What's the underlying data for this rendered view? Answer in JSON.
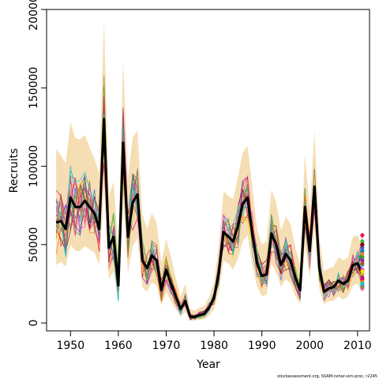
{
  "chart_data": {
    "type": "line",
    "xlabel": "Year",
    "ylabel": "Recruits",
    "xlim": [
      1945,
      2012.5
    ],
    "ylim": [
      -5000,
      200000
    ],
    "x_ticks": [
      1950,
      1960,
      1970,
      1980,
      1990,
      2000,
      2010
    ],
    "x_tick_labels": [
      "1950",
      "1960",
      "1970",
      "1980",
      "1990",
      "2000",
      "2010"
    ],
    "y_ticks": [
      0,
      50000,
      100000,
      150000,
      200000
    ],
    "y_tick_labels": [
      "0",
      "50000",
      "100000",
      "150000",
      "200000"
    ],
    "grid": false,
    "legend": "none",
    "credit": "stockassessment.org, SSAM-nsher-sim-proc, r2245",
    "x": [
      1947,
      1948,
      1949,
      1950,
      1951,
      1952,
      1953,
      1954,
      1955,
      1956,
      1957,
      1958,
      1959,
      1960,
      1961,
      1962,
      1963,
      1964,
      1965,
      1966,
      1967,
      1968,
      1969,
      1970,
      1971,
      1972,
      1973,
      1974,
      1975,
      1976,
      1977,
      1978,
      1979,
      1980,
      1981,
      1982,
      1983,
      1984,
      1985,
      1986,
      1987,
      1988,
      1989,
      1990,
      1991,
      1992,
      1993,
      1994,
      1995,
      1996,
      1997,
      1998,
      1999,
      2000,
      2001,
      2002,
      2003,
      2004,
      2005,
      2006,
      2007,
      2008,
      2009,
      2010,
      2011
    ],
    "series": [
      {
        "role": "estimate",
        "color": "#000000",
        "values": [
          64000,
          65000,
          60000,
          80000,
          74000,
          74000,
          78000,
          74000,
          70000,
          60000,
          130000,
          48000,
          55000,
          24000,
          115000,
          55000,
          77000,
          82000,
          40000,
          35000,
          43000,
          40000,
          21000,
          34000,
          25000,
          17000,
          9000,
          14000,
          4000,
          4000,
          5000,
          6000,
          10000,
          16000,
          32000,
          58000,
          55000,
          52000,
          62000,
          76000,
          80000,
          57000,
          38000,
          30000,
          31000,
          57000,
          50000,
          37000,
          44000,
          40000,
          29000,
          21000,
          74000,
          46000,
          87000,
          35000,
          20000,
          22000,
          23000,
          27000,
          25000,
          27000,
          37000,
          38000,
          31000
        ]
      },
      {
        "role": "confidence-band-upper",
        "color": "#f5deb3",
        "values": [
          111000,
          107000,
          102000,
          128000,
          118000,
          117000,
          120000,
          112000,
          105000,
          95000,
          193000,
          81000,
          90000,
          47000,
          168000,
          93000,
          118000,
          123000,
          70000,
          60000,
          70000,
          64000,
          38000,
          54000,
          42000,
          29000,
          17000,
          25000,
          9000,
          8000,
          10000,
          11000,
          17000,
          26000,
          50000,
          84000,
          81000,
          79000,
          93000,
          109000,
          113000,
          87000,
          60000,
          50000,
          52000,
          85000,
          77000,
          59000,
          68000,
          63000,
          48000,
          37000,
          108000,
          71000,
          123000,
          55000,
          33000,
          35000,
          36000,
          42000,
          40000,
          42000,
          55000,
          56000,
          49000
        ]
      },
      {
        "role": "confidence-band-lower",
        "color": "#f5deb3",
        "values": [
          37000,
          39000,
          36000,
          50000,
          46000,
          46000,
          49000,
          47000,
          45000,
          37000,
          87000,
          28000,
          33000,
          12000,
          78000,
          32000,
          49000,
          54000,
          23000,
          20000,
          26000,
          24000,
          11000,
          20000,
          14000,
          9000,
          4000,
          7000,
          1500,
          1500,
          2000,
          2500,
          5000,
          9000,
          20000,
          40000,
          38000,
          34000,
          41000,
          52000,
          56000,
          37000,
          23000,
          17000,
          18000,
          38000,
          32000,
          23000,
          28000,
          25000,
          17000,
          12000,
          50000,
          29000,
          61000,
          22000,
          12000,
          14000,
          14000,
          17000,
          15000,
          17000,
          24000,
          25000,
          19000
        ]
      }
    ],
    "simulations": {
      "count": 20,
      "colors": [
        "#e6194b",
        "#3cb44b",
        "#4363d8",
        "#f58231",
        "#911eb4",
        "#46b4d0",
        "#f032e6",
        "#bcbd22",
        "#e41a1c",
        "#ff7f00",
        "#984ea3",
        "#ff69b4",
        "#8b0000",
        "#1f78b4",
        "#33a02c",
        "#a65628",
        "#ffd700",
        "#c71585",
        "#00ced1",
        "#808080"
      ],
      "final_points": [
        56000,
        52000,
        48000,
        44000,
        40000,
        37000,
        34000,
        31000,
        28000,
        26000,
        24000,
        22000,
        50000,
        46000,
        42000,
        38000,
        33000,
        29000,
        25000,
        23000
      ]
    }
  }
}
